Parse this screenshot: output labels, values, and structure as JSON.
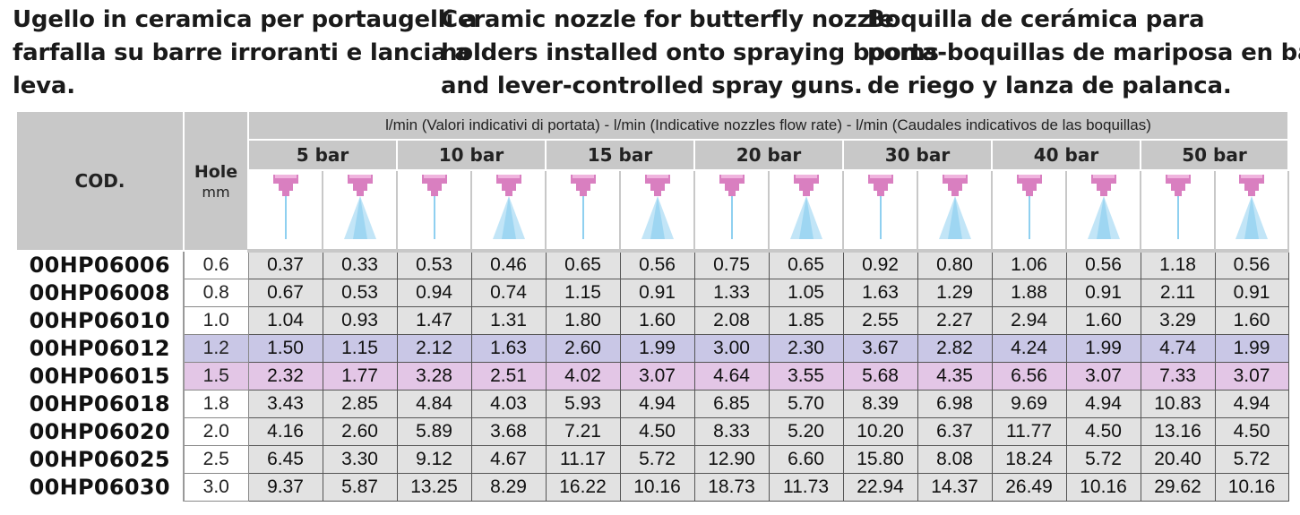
{
  "titles": {
    "it": [
      "Ugello in ceramica per portaugelli a",
      "farfalla su barre irroranti e lancia a",
      "leva."
    ],
    "en": [
      "Ceramic nozzle for butterfly nozzle",
      "holders installed onto spraying booms",
      "and lever-controlled spray guns."
    ],
    "es": [
      "Boquilla de cerámica para",
      "porta-boquillas de mariposa en barras",
      "de riego y lanza de palanca."
    ]
  },
  "header": {
    "cod": "COD.",
    "hole": "Hole",
    "hole_unit": "mm",
    "flow_caption": "l/min (Valori indicativi di portata) - l/min (Indicative nozzles flow rate) - l/min (Caudales indicativos de las boquillas)",
    "pressures": [
      "5 bar",
      "10 bar",
      "15 bar",
      "20 bar",
      "30 bar",
      "40 bar",
      "50 bar"
    ]
  },
  "icons": {
    "jet_icon": "solid-stream-nozzle-icon",
    "spray_icon": "cone-spray-nozzle-icon",
    "nozzle_color": "#d97fc0",
    "spray_color": "#8fd0f0"
  },
  "colors": {
    "header_gray": "#c8c8c8",
    "cell_gray": "#e2e2e2",
    "highlight_blue": "#c9c7e6",
    "highlight_pink": "#e3c6e6"
  },
  "rows": [
    {
      "code": "00HP06006",
      "hole": "0.6",
      "values": [
        "0.37",
        "0.33",
        "0.53",
        "0.46",
        "0.65",
        "0.56",
        "0.75",
        "0.65",
        "0.92",
        "0.80",
        "1.06",
        "0.56",
        "1.18",
        "0.56"
      ]
    },
    {
      "code": "00HP06008",
      "hole": "0.8",
      "values": [
        "0.67",
        "0.53",
        "0.94",
        "0.74",
        "1.15",
        "0.91",
        "1.33",
        "1.05",
        "1.63",
        "1.29",
        "1.88",
        "0.91",
        "2.11",
        "0.91"
      ]
    },
    {
      "code": "00HP06010",
      "hole": "1.0",
      "values": [
        "1.04",
        "0.93",
        "1.47",
        "1.31",
        "1.80",
        "1.60",
        "2.08",
        "1.85",
        "2.55",
        "2.27",
        "2.94",
        "1.60",
        "3.29",
        "1.60"
      ]
    },
    {
      "code": "00HP06012",
      "hole": "1.2",
      "values": [
        "1.50",
        "1.15",
        "2.12",
        "1.63",
        "2.60",
        "1.99",
        "3.00",
        "2.30",
        "3.67",
        "2.82",
        "4.24",
        "1.99",
        "4.74",
        "1.99"
      ]
    },
    {
      "code": "00HP06015",
      "hole": "1.5",
      "values": [
        "2.32",
        "1.77",
        "3.28",
        "2.51",
        "4.02",
        "3.07",
        "4.64",
        "3.55",
        "5.68",
        "4.35",
        "6.56",
        "3.07",
        "7.33",
        "3.07"
      ]
    },
    {
      "code": "00HP06018",
      "hole": "1.8",
      "values": [
        "3.43",
        "2.85",
        "4.84",
        "4.03",
        "5.93",
        "4.94",
        "6.85",
        "5.70",
        "8.39",
        "6.98",
        "9.69",
        "4.94",
        "10.83",
        "4.94"
      ]
    },
    {
      "code": "00HP06020",
      "hole": "2.0",
      "values": [
        "4.16",
        "2.60",
        "5.89",
        "3.68",
        "7.21",
        "4.50",
        "8.33",
        "5.20",
        "10.20",
        "6.37",
        "11.77",
        "4.50",
        "13.16",
        "4.50"
      ]
    },
    {
      "code": "00HP06025",
      "hole": "2.5",
      "values": [
        "6.45",
        "3.30",
        "9.12",
        "4.67",
        "11.17",
        "5.72",
        "12.90",
        "6.60",
        "15.80",
        "8.08",
        "18.24",
        "5.72",
        "20.40",
        "5.72"
      ]
    },
    {
      "code": "00HP06030",
      "hole": "3.0",
      "values": [
        "9.37",
        "5.87",
        "13.25",
        "8.29",
        "16.22",
        "10.16",
        "18.73",
        "11.73",
        "22.94",
        "14.37",
        "26.49",
        "10.16",
        "29.62",
        "10.16"
      ]
    }
  ]
}
